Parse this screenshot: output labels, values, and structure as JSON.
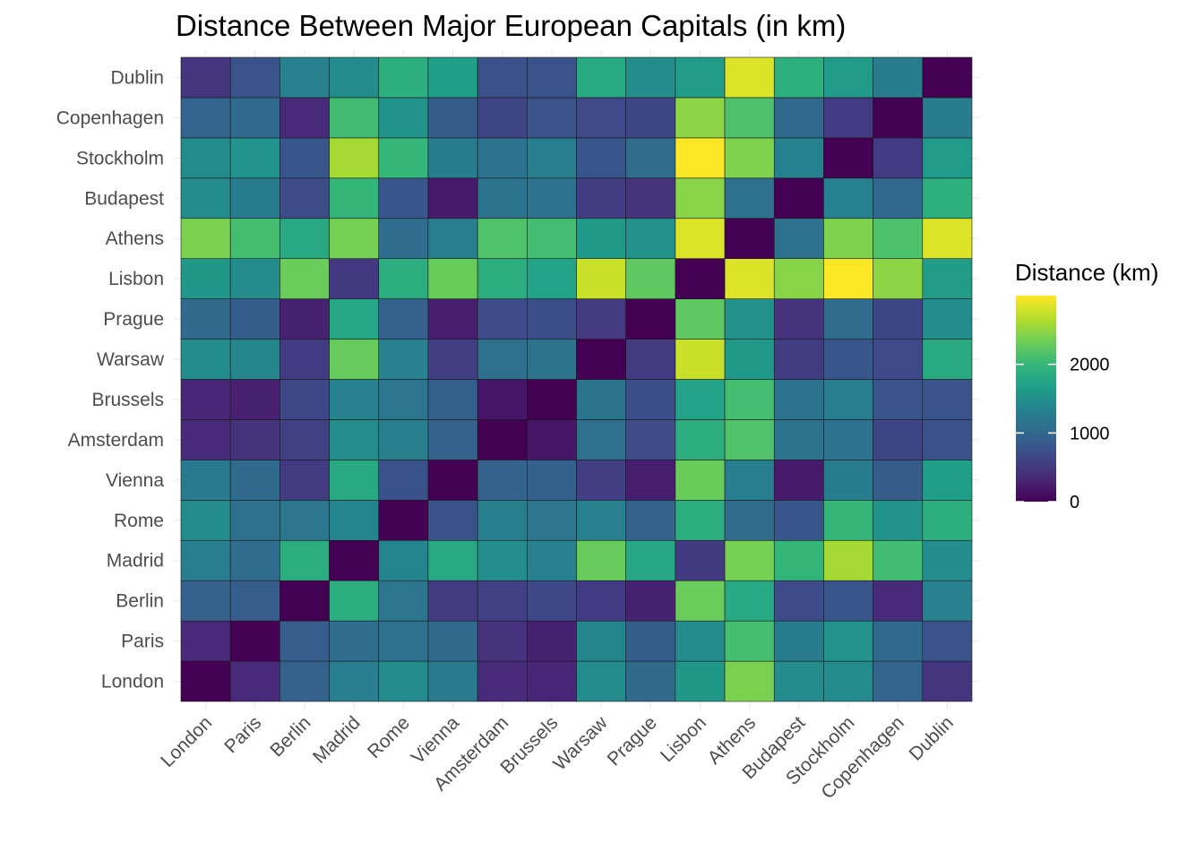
{
  "chart_data": {
    "type": "heatmap",
    "title": "Distance Between Major European Capitals (in km)",
    "xlabel": "",
    "ylabel": "",
    "cities": [
      "London",
      "Paris",
      "Berlin",
      "Madrid",
      "Rome",
      "Vienna",
      "Amsterdam",
      "Brussels",
      "Warsaw",
      "Prague",
      "Lisbon",
      "Athens",
      "Budapest",
      "Stockholm",
      "Copenhagen",
      "Dublin"
    ],
    "x_categories": [
      "London",
      "Paris",
      "Berlin",
      "Madrid",
      "Rome",
      "Vienna",
      "Amsterdam",
      "Brussels",
      "Warsaw",
      "Prague",
      "Lisbon",
      "Athens",
      "Budapest",
      "Stockholm",
      "Copenhagen",
      "Dublin"
    ],
    "y_categories": [
      "London",
      "Paris",
      "Berlin",
      "Madrid",
      "Rome",
      "Vienna",
      "Amsterdam",
      "Brussels",
      "Warsaw",
      "Prague",
      "Lisbon",
      "Athens",
      "Budapest",
      "Stockholm",
      "Copenhagen",
      "Dublin"
    ],
    "matrix_km": [
      [
        0,
        344,
        932,
        1264,
        1435,
        1235,
        358,
        320,
        1450,
        1035,
        1585,
        2390,
        1450,
        1435,
        955,
        464
      ],
      [
        344,
        0,
        878,
        1054,
        1105,
        1035,
        430,
        264,
        1368,
        885,
        1450,
        2095,
        1245,
        1545,
        1030,
        780
      ],
      [
        932,
        878,
        0,
        1870,
        1185,
        525,
        577,
        650,
        520,
        280,
        2310,
        1800,
        690,
        810,
        355,
        1315
      ],
      [
        1264,
        1054,
        1870,
        0,
        1365,
        1810,
        1480,
        1315,
        2290,
        1775,
        503,
        2370,
        1975,
        2590,
        2070,
        1450
      ],
      [
        1435,
        1105,
        1185,
        1365,
        0,
        765,
        1295,
        1175,
        1315,
        925,
        1865,
        1050,
        810,
        1980,
        1535,
        1885
      ],
      [
        1235,
        1035,
        525,
        1810,
        765,
        0,
        935,
        915,
        555,
        250,
        2300,
        1285,
        215,
        1245,
        870,
        1680
      ],
      [
        358,
        430,
        577,
        1480,
        1295,
        935,
        0,
        175,
        1095,
        710,
        1860,
        2160,
        1145,
        1125,
        620,
        755
      ],
      [
        320,
        264,
        650,
        1315,
        1175,
        915,
        175,
        0,
        1160,
        720,
        1715,
        2090,
        1130,
        1285,
        770,
        775
      ],
      [
        1450,
        1368,
        520,
        2290,
        1315,
        555,
        1095,
        1160,
        0,
        515,
        2760,
        1600,
        545,
        810,
        670,
        1825
      ],
      [
        1035,
        885,
        280,
        1775,
        925,
        250,
        710,
        720,
        515,
        0,
        2250,
        1525,
        445,
        1050,
        635,
        1460
      ],
      [
        1585,
        1450,
        2310,
        503,
        1865,
        2300,
        1860,
        1715,
        2760,
        2250,
        0,
        2850,
        2450,
        2990,
        2480,
        1640
      ],
      [
        2390,
        2095,
        1800,
        2370,
        1050,
        1285,
        2160,
        2090,
        1600,
        1525,
        2850,
        0,
        1120,
        2410,
        2140,
        2850
      ],
      [
        1450,
        1245,
        690,
        1975,
        810,
        215,
        1145,
        1130,
        545,
        445,
        2450,
        1120,
        0,
        1320,
        1010,
        1895
      ],
      [
        1435,
        1545,
        810,
        2590,
        1980,
        1245,
        1125,
        1285,
        810,
        1050,
        2990,
        2410,
        1320,
        0,
        520,
        1630
      ],
      [
        955,
        1030,
        355,
        2070,
        1535,
        870,
        620,
        770,
        670,
        635,
        2480,
        2140,
        1010,
        520,
        0,
        1240
      ],
      [
        464,
        780,
        1315,
        1450,
        1885,
        1680,
        755,
        775,
        1825,
        1460,
        1640,
        2850,
        1895,
        1630,
        1240,
        0
      ]
    ],
    "color_scale": "viridis",
    "color_range": [
      0,
      3000
    ],
    "legend": {
      "title": "Distance (km)",
      "ticks": [
        "0",
        "1000",
        "2000"
      ],
      "tick_values": [
        0,
        1000,
        2000
      ],
      "placement": "right"
    },
    "grid": true
  },
  "colors": {
    "viridis": [
      "#440154",
      "#482878",
      "#3e4989",
      "#31688e",
      "#26828e",
      "#1f9e89",
      "#35b779",
      "#6ece58",
      "#b5de2b",
      "#fde725"
    ],
    "grid": "#ebebeb",
    "cell_border": "#1a1a1a",
    "axis_text": "#4d4d4d"
  }
}
